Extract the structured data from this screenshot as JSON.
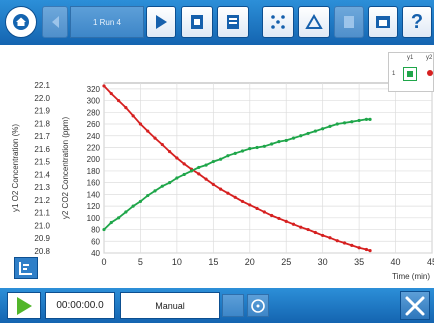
{
  "toolbar": {
    "run_label": "1 Run 4",
    "help_label": "?"
  },
  "bottombar": {
    "time_value": "00:00:00.0",
    "mode_value": "Manual"
  },
  "legend": {
    "col1": "y1",
    "col2": "y2",
    "row_label": "1"
  },
  "colors": {
    "co2": "#d62020",
    "o2": "#1fa64a",
    "toolbar": "#1b6fbf",
    "grid": "#dddddd"
  },
  "chart_data": {
    "type": "line",
    "xlabel": "Time (min)",
    "xlim": [
      0,
      45
    ],
    "x_ticks": [
      "0",
      "5",
      "10",
      "15",
      "20",
      "25",
      "30",
      "35",
      "40",
      "45"
    ],
    "y_axes": [
      {
        "label": "y1 O2 Concentration (%)",
        "ticks": [
          "22.1",
          "22.0",
          "21.9",
          "21.8",
          "21.7",
          "21.6",
          "21.5",
          "21.4",
          "21.3",
          "21.2",
          "21.1",
          "21.0",
          "20.9",
          "20.8"
        ]
      },
      {
        "label": "y2 CO2 Concentration (ppm)",
        "ticks": [
          "320",
          "300",
          "280",
          "260",
          "240",
          "220",
          "200",
          "180",
          "160",
          "140",
          "120",
          "100",
          "80",
          "60",
          "40"
        ],
        "ylim": [
          40,
          330
        ]
      }
    ],
    "series": [
      {
        "color": "#d62020",
        "x": [
          0,
          1,
          2,
          3,
          4,
          5,
          6,
          7,
          8,
          9,
          10,
          11,
          12,
          13,
          14,
          15,
          16,
          17,
          18,
          19,
          20,
          21,
          22,
          23,
          24,
          25,
          26,
          27,
          28,
          29,
          30,
          31,
          32,
          33,
          34,
          35,
          36,
          36.5
        ],
        "y": [
          325,
          312,
          300,
          288,
          274,
          260,
          248,
          236,
          225,
          213,
          202,
          192,
          183,
          175,
          166,
          157,
          149,
          142,
          135,
          128,
          122,
          116,
          110,
          104,
          99,
          94,
          89,
          84,
          80,
          75,
          70,
          66,
          61,
          57,
          53,
          49,
          46,
          44
        ]
      },
      {
        "color": "#1fa64a",
        "x": [
          0,
          1,
          2,
          3,
          4,
          5,
          6,
          7,
          8,
          9,
          10,
          11,
          12,
          13,
          14,
          15,
          16,
          17,
          18,
          19,
          20,
          21,
          22,
          23,
          24,
          25,
          26,
          27,
          28,
          29,
          30,
          31,
          32,
          33,
          34,
          35,
          36,
          36.5
        ],
        "y": [
          80,
          92,
          100,
          110,
          120,
          128,
          138,
          146,
          154,
          160,
          168,
          174,
          180,
          186,
          190,
          196,
          200,
          206,
          210,
          214,
          218,
          220,
          222,
          226,
          230,
          232,
          236,
          240,
          244,
          248,
          252,
          256,
          260,
          262,
          264,
          266,
          268,
          268
        ]
      }
    ]
  }
}
